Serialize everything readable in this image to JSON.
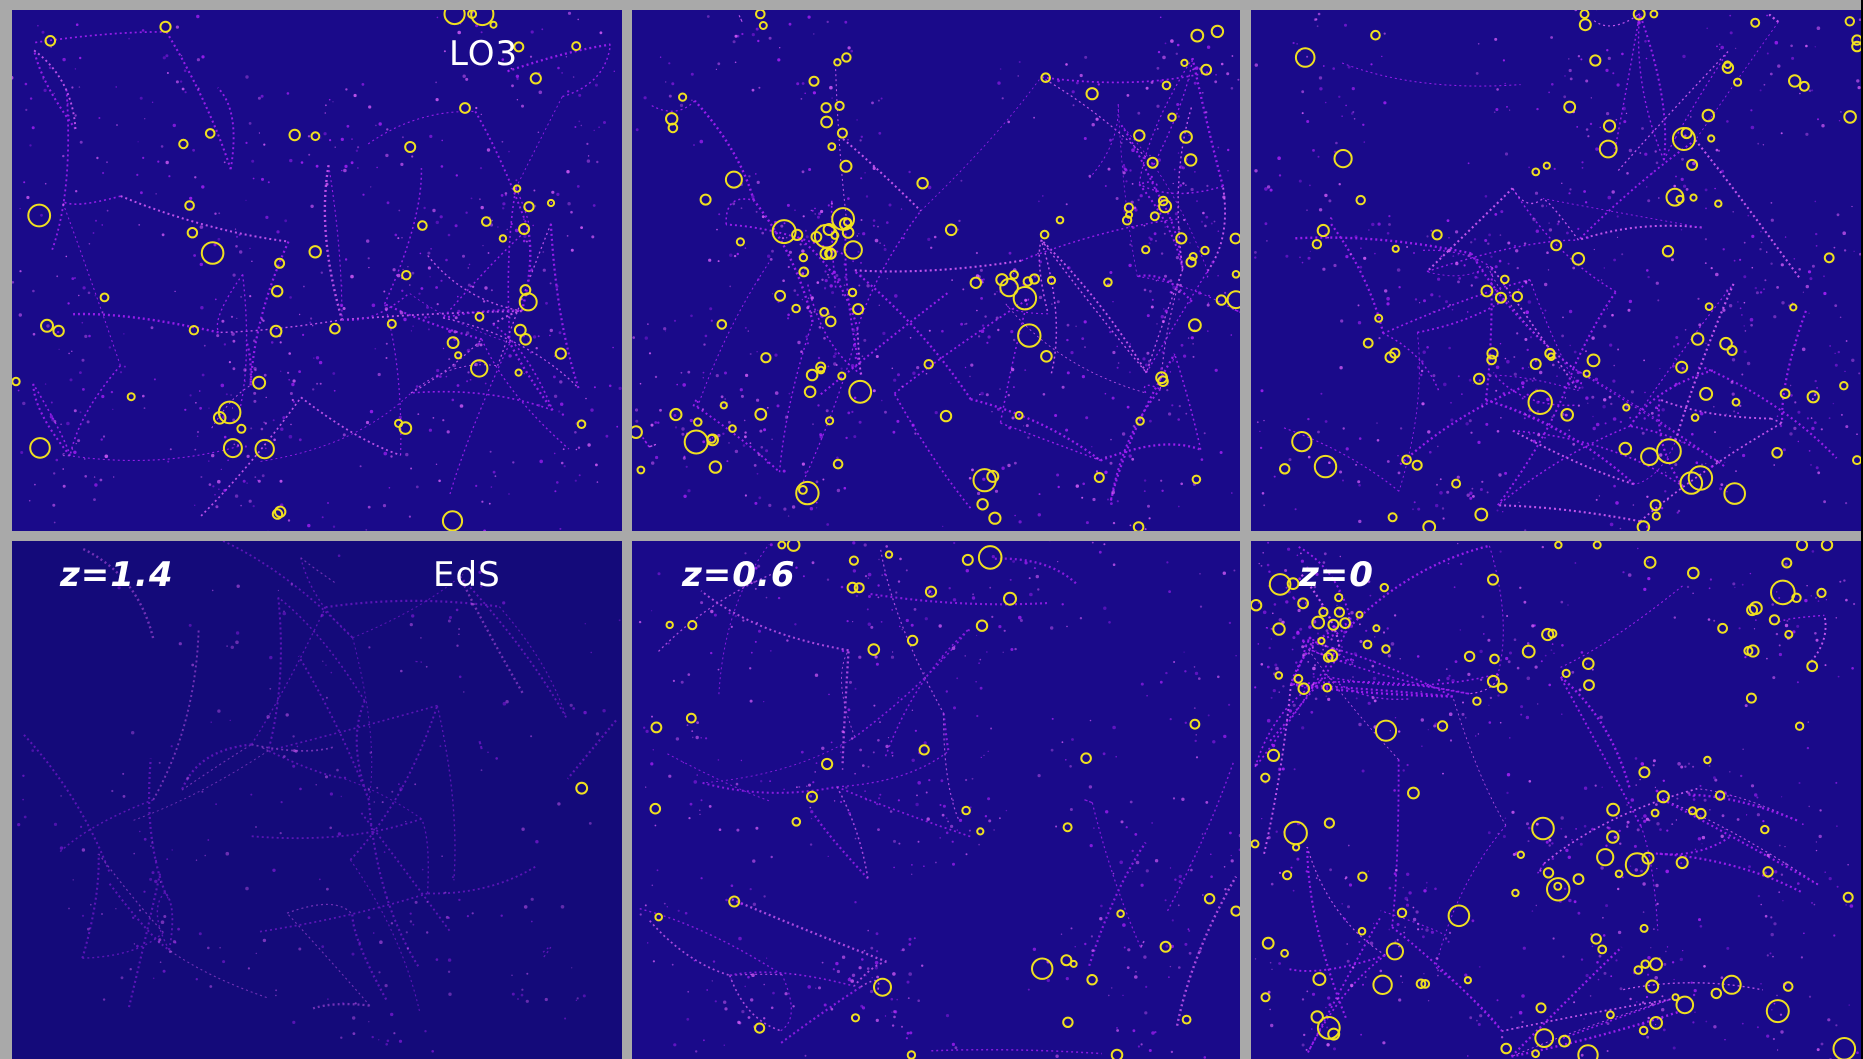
{
  "figure": {
    "rows": [
      {
        "model": "LO3",
        "panels": [
          {
            "id": "lo3-z1.4",
            "redshift": "",
            "model_label": "LO3",
            "seed": 11,
            "brightness": 0.95,
            "halo_count": 62
          },
          {
            "id": "lo3-z0.6",
            "redshift": "",
            "model_label": "",
            "seed": 23,
            "brightness": 1.0,
            "halo_count": 118
          },
          {
            "id": "lo3-z0",
            "redshift": "",
            "model_label": "",
            "seed": 37,
            "brightness": 1.0,
            "halo_count": 92
          }
        ]
      },
      {
        "model": "EdS",
        "panels": [
          {
            "id": "eds-z1.4",
            "redshift": "z=1.4",
            "model_label": "EdS",
            "seed": 41,
            "brightness": 0.35,
            "halo_count": 1
          },
          {
            "id": "eds-z0.6",
            "redshift": "z=0.6",
            "model_label": "",
            "seed": 53,
            "brightness": 0.8,
            "halo_count": 44
          },
          {
            "id": "eds-z0",
            "redshift": "z=0",
            "model_label": "",
            "seed": 67,
            "brightness": 1.0,
            "halo_count": 128
          }
        ]
      }
    ],
    "colors": {
      "background": "#1a0a8a",
      "filament": "#b020ff",
      "filament_hot": "#e060ff",
      "halo_circle": "#f0e020",
      "separator": "#a9a9a9",
      "label_text": "#ffffff"
    }
  }
}
